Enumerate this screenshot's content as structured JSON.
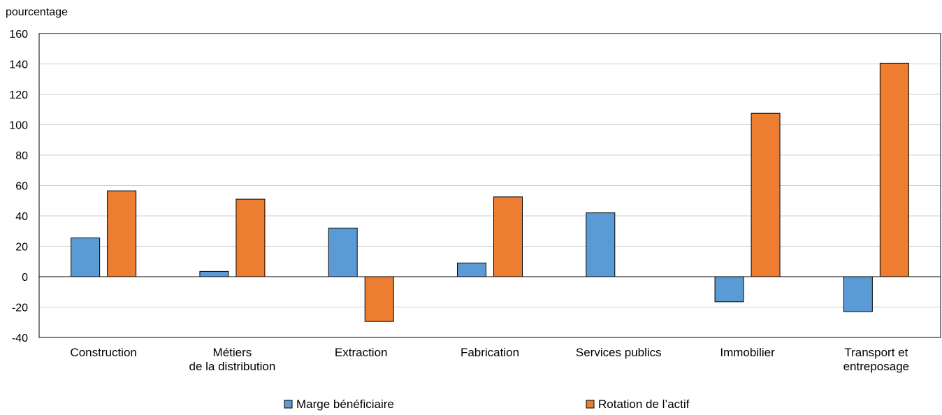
{
  "chart_data": {
    "type": "bar",
    "title": "",
    "ylabel": "pourcentage",
    "xlabel": "",
    "ylim": [
      -40,
      160
    ],
    "yticks": [
      160,
      140,
      120,
      100,
      80,
      60,
      40,
      20,
      0,
      -20,
      -40
    ],
    "grid": true,
    "legend_position": "bottom",
    "categories": [
      [
        "Construction"
      ],
      [
        "Métiers",
        "de la distribution"
      ],
      [
        "Extraction"
      ],
      [
        "Fabrication"
      ],
      [
        "Services publics"
      ],
      [
        "Immobilier"
      ],
      [
        "Transport et",
        "entreposage"
      ]
    ],
    "series": [
      {
        "name": "Marge bénéficiaire",
        "color": "#5b9bd5",
        "values": [
          25.5,
          3.5,
          32,
          9,
          42,
          -16.5,
          -23
        ]
      },
      {
        "name": "Rotation de l’actif",
        "color": "#ed7d31",
        "values": [
          56.5,
          51,
          -29.5,
          52.5,
          0,
          107.5,
          140.5
        ]
      }
    ]
  }
}
